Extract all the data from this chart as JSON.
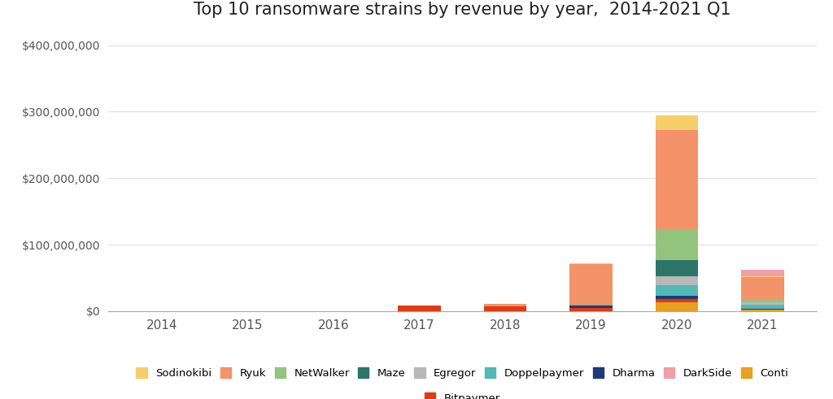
{
  "title": "Top 10 ransomware strains by revenue by year,  2014-2021 Q1",
  "years": [
    2014,
    2015,
    2016,
    2017,
    2018,
    2019,
    2020,
    2021
  ],
  "strains_order": [
    "Conti",
    "Bitpaymer",
    "Dharma",
    "Doppelpaymer",
    "Egregor",
    "Maze",
    "NetWalker",
    "Ryuk",
    "Sodinokibi",
    "DarkSide"
  ],
  "colors": {
    "Sodinokibi": "#F5CE6A",
    "Ryuk": "#F4936A",
    "NetWalker": "#92C47E",
    "Maze": "#2D7567",
    "Egregor": "#B8B8B8",
    "Doppelpaymer": "#52B8B5",
    "Dharma": "#1E3A7A",
    "DarkSide": "#EFA0AA",
    "Conti": "#E8A020",
    "Bitpaymer": "#E03A10"
  },
  "data": {
    "Conti": [
      0,
      0,
      0,
      0,
      0,
      0,
      13000000,
      2000000
    ],
    "Bitpaymer": [
      0,
      0,
      0,
      8000000,
      7500000,
      5000000,
      5000000,
      500000
    ],
    "Dharma": [
      0,
      0,
      0,
      0,
      0,
      4000000,
      5000000,
      1500000
    ],
    "Doppelpaymer": [
      0,
      0,
      0,
      0,
      0,
      1200000,
      16000000,
      6000000
    ],
    "Egregor": [
      0,
      0,
      0,
      0,
      0,
      0,
      13000000,
      4000000
    ],
    "Maze": [
      0,
      0,
      0,
      0,
      0,
      0,
      25000000,
      0
    ],
    "NetWalker": [
      0,
      0,
      0,
      0,
      0,
      0,
      46000000,
      3000000
    ],
    "Ryuk": [
      0,
      0,
      0,
      0,
      3700000,
      61000000,
      150000000,
      34000000
    ],
    "Sodinokibi": [
      0,
      0,
      0,
      0,
      0,
      1000000,
      22000000,
      2000000
    ],
    "DarkSide": [
      0,
      0,
      0,
      0,
      0,
      0,
      0,
      9000000
    ]
  },
  "ylim_max": 420000000,
  "yticks": [
    0,
    100000000,
    200000000,
    300000000,
    400000000
  ],
  "background_color": "#FFFFFF",
  "grid_color": "#DDDDDD",
  "bar_width": 0.5,
  "legend_order": [
    "Sodinokibi",
    "Ryuk",
    "NetWalker",
    "Maze",
    "Egregor",
    "Doppelpaymer",
    "Dharma",
    "DarkSide",
    "Conti",
    "Bitpaymer"
  ]
}
